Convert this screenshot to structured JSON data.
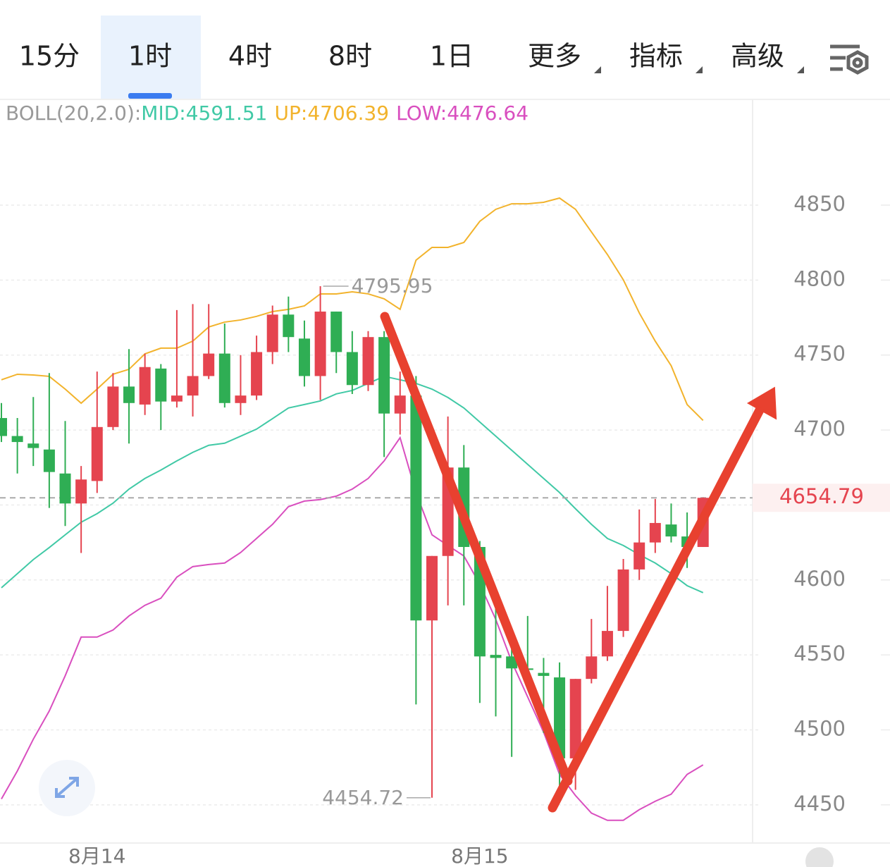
{
  "tabs": [
    "15分",
    "1时",
    "4时",
    "8时",
    "1日",
    "更多",
    "指标",
    "高级"
  ],
  "active_tab": 1,
  "chart_data": {
    "type": "candlestick",
    "indicator": "BOLL(20,2.0):",
    "categories": [
      null,
      null,
      null,
      null,
      null,
      null,
      "8月14",
      null,
      null,
      null,
      null,
      null,
      null,
      null,
      null,
      null,
      null,
      null,
      null,
      null,
      null,
      null,
      null,
      null,
      null,
      null,
      null,
      null,
      null,
      null,
      "8月15",
      null,
      null,
      null,
      null,
      null,
      null,
      null,
      null,
      null,
      null,
      null,
      null,
      null,
      null
    ],
    "open": [
      4708,
      4696,
      4691,
      4687,
      4671,
      4651,
      4666,
      4702,
      4729,
      4717,
      4741,
      4719,
      4723,
      4736,
      4751,
      4718,
      4723,
      4752,
      4777,
      4761,
      4736,
      4779,
      4752,
      4730,
      4762,
      4711,
      4723,
      4573,
      4616,
      4675,
      4622,
      4550,
      4549,
      4541,
      4538,
      4535,
      4481,
      4534,
      4549,
      4566,
      4607,
      4625,
      4637,
      4629,
      4622
    ],
    "high": [
      4718,
      4708,
      4722,
      4738,
      4706,
      4676,
      4739,
      4738,
      4754,
      4751,
      4744,
      4780,
      4784,
      4784,
      4771,
      4750,
      4763,
      4783,
      4789,
      4773,
      4795.95,
      4779,
      4766,
      4766,
      4766,
      4739,
      4736,
      4616,
      4709,
      4690,
      4626,
      4592,
      4564,
      4576,
      4548,
      4545,
      4534,
      4574,
      4596,
      4614,
      4647,
      4654,
      4651,
      4645,
      4655
    ],
    "low": [
      4692,
      4671,
      4676,
      4648,
      4636,
      4618,
      4658,
      4700,
      4691,
      4710,
      4700,
      4715,
      4709,
      4734,
      4715,
      4710,
      4720,
      4744,
      4752,
      4729,
      4720,
      4738,
      4724,
      4726,
      4682,
      4697,
      4517,
      4454.72,
      4583,
      4583,
      4518,
      4509,
      4482,
      4537,
      4498,
      4457,
      4460,
      4531,
      4546,
      4562,
      4600,
      4618,
      4625,
      4608,
      4622
    ],
    "close": [
      4696,
      4692,
      4688,
      4672,
      4651,
      4667,
      4702,
      4729,
      4718,
      4742,
      4719,
      4723,
      4736,
      4751,
      4718,
      4723,
      4752,
      4777,
      4762,
      4736,
      4779,
      4752,
      4730,
      4762,
      4711,
      4723,
      4573,
      4616,
      4675,
      4622,
      4549,
      4548,
      4541,
      4540,
      4536,
      4481,
      4534,
      4549,
      4566,
      4607,
      4625,
      4638,
      4629,
      4622,
      4654.79
    ],
    "up_color": "#e5444f",
    "down_color": "#2fae54",
    "overlays": [
      {
        "label": "MID:4591.51",
        "color": "#41c9a6",
        "values": [
          4594.8,
          4604.2,
          4613.6,
          4621.6,
          4630.1,
          4638.5,
          4644.2,
          4651.2,
          4660.6,
          4667.7,
          4673.3,
          4679.4,
          4685.1,
          4689.8,
          4691.2,
          4695.9,
          4700.6,
          4707.6,
          4714.7,
          4717.0,
          4719.4,
          4724.1,
          4726.4,
          4731.1,
          4735.8,
          4733.5,
          4731.1,
          4727.3,
          4721.7,
          4714.7,
          4705.3,
          4695.9,
          4686.5,
          4677.1,
          4667.7,
          4658.3,
          4647.5,
          4637.1,
          4627.7,
          4623.0,
          4616.9,
          4611.3,
          4604.2,
          4596.2,
          4591.51
        ]
      },
      {
        "label": "UP:4706.39",
        "color": "#f2b32c",
        "values": [
          4733.5,
          4737.2,
          4736.7,
          4735.8,
          4727.3,
          4717.9,
          4727.3,
          4737.2,
          4740.5,
          4750.8,
          4754.6,
          4754.6,
          4759.3,
          4768.7,
          4772.0,
          4773.4,
          4775.8,
          4779.0,
          4780.5,
          4782.8,
          4790.8,
          4790.8,
          4792.2,
          4790.8,
          4787.5,
          4780.5,
          4813.3,
          4821.8,
          4821.8,
          4825.1,
          4839.2,
          4847.2,
          4850.9,
          4850.9,
          4851.9,
          4854.7,
          4847.2,
          4832.1,
          4817.1,
          4800.2,
          4778.1,
          4759.3,
          4742.9,
          4717.0,
          4706.39
        ]
      },
      {
        "label": "LOW:4476.64",
        "color": "#d94fbf",
        "values": [
          4453.9,
          4472.6,
          4493.8,
          4512.6,
          4536.1,
          4561.9,
          4561.9,
          4566.6,
          4576.0,
          4583.1,
          4587.8,
          4601.9,
          4608.9,
          4610.3,
          4611.3,
          4618.3,
          4627.7,
          4637.1,
          4648.9,
          4652.6,
          4653.6,
          4655.9,
          4660.6,
          4667.7,
          4679.4,
          4694.9,
          4658.3,
          4630.1,
          4623.0,
          4616.0,
          4597.2,
          4573.7,
          4545.5,
          4522.0,
          4498.5,
          4470.3,
          4456.2,
          4444.5,
          4439.7,
          4439.7,
          4446.8,
          4452.4,
          4457.1,
          4470.3,
          4476.64
        ]
      }
    ],
    "ylim": [
      4425,
      4921
    ],
    "yticks": [
      4450,
      4500,
      4550,
      4600,
      4650,
      4700,
      4750,
      4800,
      4850
    ],
    "grid": true
  }
}
